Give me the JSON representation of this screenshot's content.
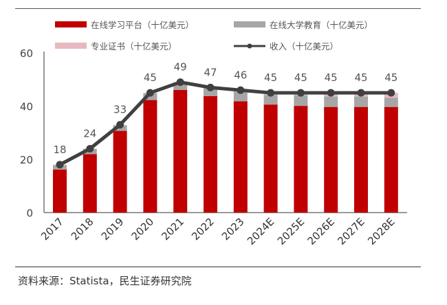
{
  "chart_data": {
    "type": "bar",
    "stacked": true,
    "categories": [
      "2017",
      "2018",
      "2019",
      "2020",
      "2021",
      "2022",
      "2023",
      "2024E",
      "2025E",
      "2026E",
      "2027E",
      "2028E"
    ],
    "series": [
      {
        "name": "在线学习平台（十亿美元）",
        "kind": "bar",
        "color": "#c00000",
        "values": [
          16.2,
          22.0,
          30.7,
          42.3,
          46.1,
          43.8,
          41.8,
          40.6,
          40.1,
          39.7,
          39.7,
          39.7
        ]
      },
      {
        "name": "在线大学教育（十亿美元）",
        "kind": "bar",
        "color": "#a6a6a6",
        "values": [
          1.6,
          2.0,
          2.0,
          2.5,
          2.8,
          3.1,
          3.6,
          3.6,
          3.9,
          3.9,
          3.9,
          3.4
        ]
      },
      {
        "name": "专业证书（十亿美元）",
        "kind": "bar",
        "color": "#e6b9c0",
        "values": [
          0.2,
          0.0,
          0.3,
          0.2,
          0.1,
          0.1,
          0.6,
          0.8,
          1.0,
          1.4,
          1.4,
          1.9
        ]
      },
      {
        "name": "收入（十亿美元）",
        "kind": "line",
        "color": "#404040",
        "values": [
          18,
          24,
          33,
          45,
          49,
          47,
          46,
          45,
          45,
          45,
          45,
          45
        ]
      }
    ],
    "data_labels": [
      "18",
      "24",
      "33",
      "45",
      "49",
      "47",
      "46",
      "45",
      "45",
      "45",
      "45",
      "45"
    ],
    "yticks": [
      "0",
      "20",
      "40",
      "60"
    ],
    "ylim": [
      0,
      60
    ],
    "grid": false,
    "legend": "top"
  },
  "source": "资料来源：Statista，民生证券研究院"
}
